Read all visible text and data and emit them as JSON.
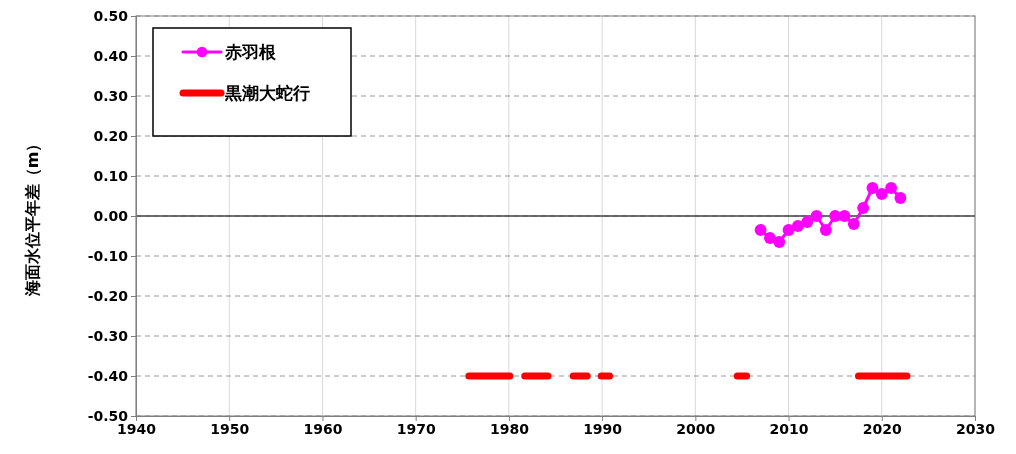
{
  "chart_data": {
    "type": "line",
    "ylabel": "海面水位平年差（m）",
    "xlim": [
      1940,
      2030
    ],
    "xticks": [
      1940,
      1950,
      1960,
      1970,
      1980,
      1990,
      2000,
      2010,
      2020,
      2030
    ],
    "ylim": [
      -0.5,
      0.5
    ],
    "yticks": [
      {
        "value": -0.5,
        "label": "-0.50"
      },
      {
        "value": -0.4,
        "label": "-0.40"
      },
      {
        "value": -0.3,
        "label": "-0.30"
      },
      {
        "value": -0.2,
        "label": "-0.20"
      },
      {
        "value": -0.1,
        "label": "-0.10"
      },
      {
        "value": 0,
        "label": "0.00"
      },
      {
        "value": 0.1,
        "label": "0.10"
      },
      {
        "value": 0.2,
        "label": "0.20"
      },
      {
        "value": 0.3,
        "label": "0.30"
      },
      {
        "value": 0.4,
        "label": "0.40"
      },
      {
        "value": 0.5,
        "label": "0.50"
      }
    ],
    "grid": true,
    "legend": "top left",
    "ref_lines": [
      {
        "axis": "y",
        "value": 0,
        "color": "#404040",
        "line_style": "solid"
      }
    ],
    "series": [
      {
        "name": "赤羽根",
        "color": "#ff00ff",
        "marker": "circle",
        "x": [
          2007,
          2008,
          2009,
          2010,
          2011,
          2012,
          2013,
          2014,
          2015,
          2016,
          2017,
          2018,
          2019,
          2020,
          2021,
          2022
        ],
        "values": [
          -0.035,
          -0.055,
          -0.065,
          -0.035,
          -0.025,
          -0.015,
          0,
          -0.035,
          0,
          0,
          -0.02,
          0.02,
          0.07,
          0.055,
          0.07,
          0.045
        ]
      },
      {
        "name": "黒潮大蛇行",
        "color": "#ff0000",
        "marker": "none",
        "x": [
          1975.7,
          1980.1,
          1981,
          1981.7,
          1984.2,
          1985,
          1986.9,
          1988.4,
          1989,
          1989.9,
          1990.8,
          2000,
          2004.5,
          2005.5,
          2010,
          2017.5,
          2022.7
        ],
        "values": [
          -0.4,
          -0.4,
          null,
          -0.4,
          -0.4,
          null,
          -0.4,
          -0.4,
          null,
          -0.4,
          -0.4,
          null,
          -0.4,
          -0.4,
          null,
          -0.4,
          -0.4
        ]
      }
    ]
  }
}
